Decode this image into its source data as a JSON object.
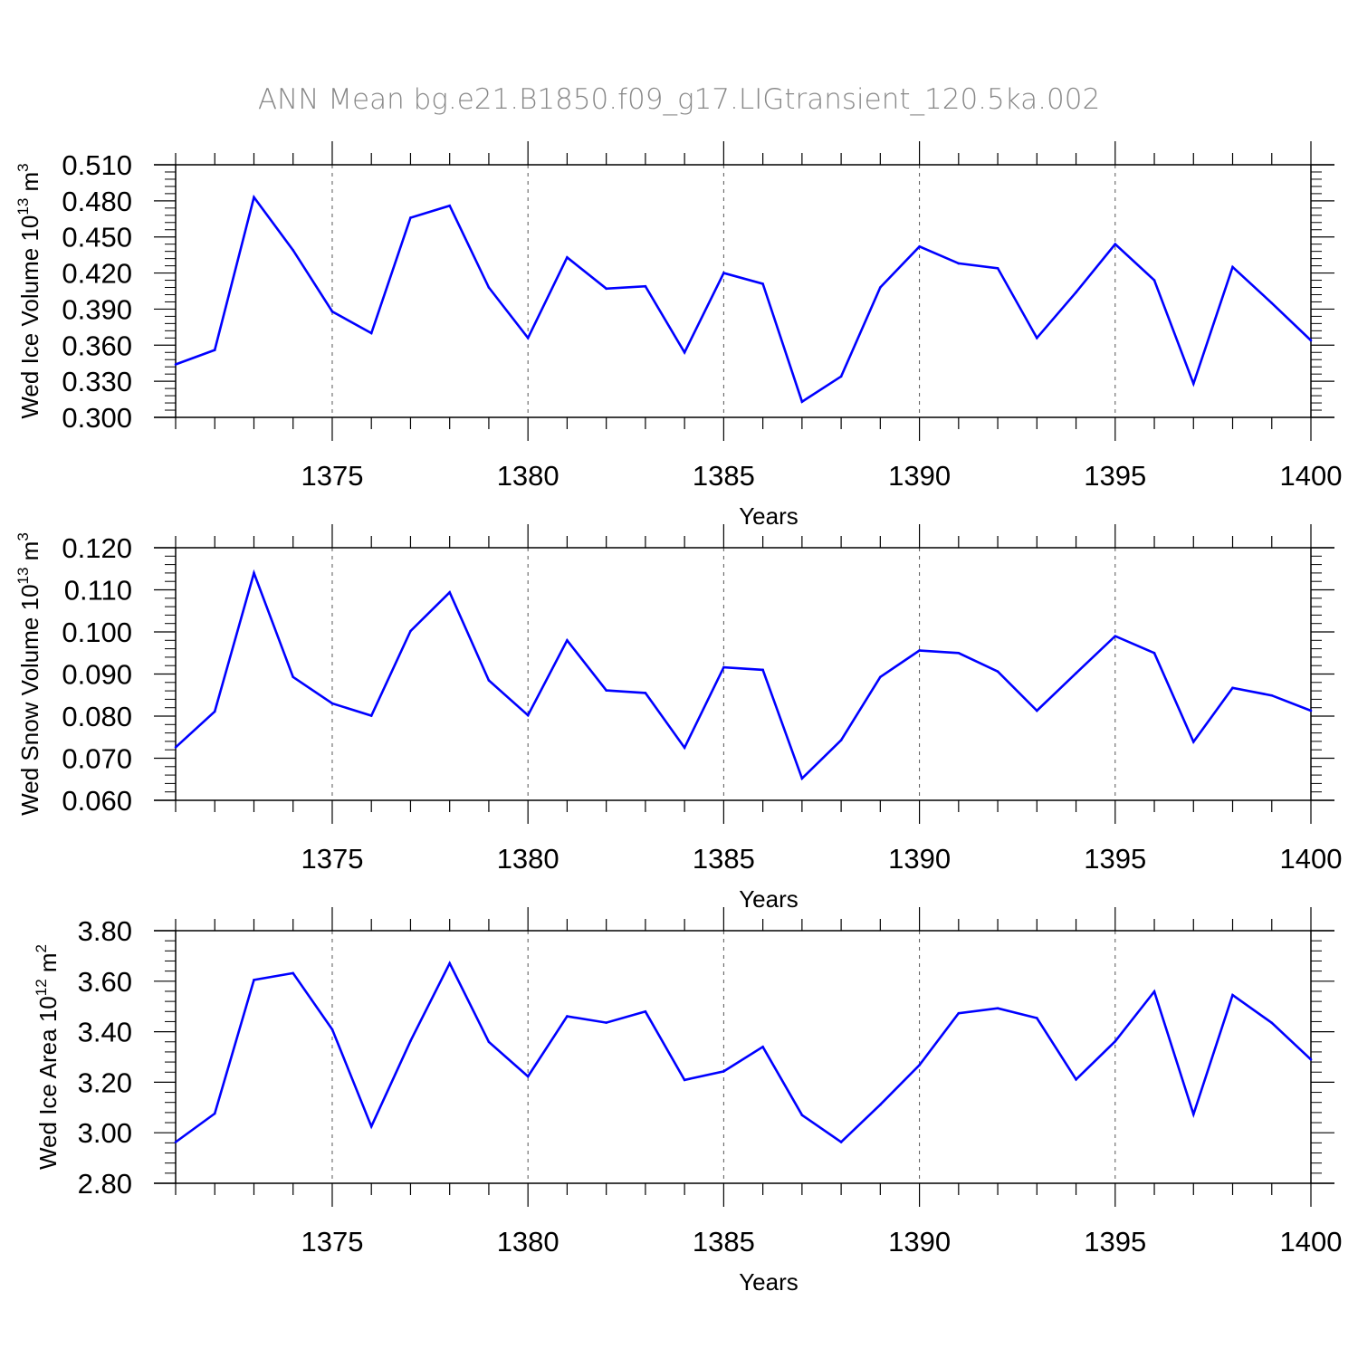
{
  "title": "ANN Mean bg.e21.B1850.f09_g17.LIGtransient_120.5ka.002",
  "colors": {
    "line": "#0000ff",
    "axis": "#000000",
    "grid": "#555555",
    "title": "#888888"
  },
  "chart_data": [
    {
      "type": "line",
      "ylabel": "Wed Ice Volume 10",
      "ylabel_exp": "13",
      "ylabel_unit": " m",
      "ylabel_unit_exp": "3",
      "xlabel": "Years",
      "xlim": [
        1371,
        1400
      ],
      "ylim": [
        0.3,
        0.51
      ],
      "yticks": [
        "0.300",
        "0.330",
        "0.360",
        "0.390",
        "0.420",
        "0.450",
        "0.480",
        "0.510"
      ],
      "xticks": [
        "1375",
        "1380",
        "1385",
        "1390",
        "1395",
        "1400"
      ],
      "grid": "vertical dashed at labeled x ticks",
      "x": [
        1371,
        1372,
        1373,
        1374,
        1375,
        1376,
        1377,
        1378,
        1379,
        1380,
        1381,
        1382,
        1383,
        1384,
        1385,
        1386,
        1387,
        1388,
        1389,
        1390,
        1391,
        1392,
        1393,
        1394,
        1395,
        1396,
        1397,
        1398,
        1399,
        1400
      ],
      "values": [
        0.344,
        0.356,
        0.483,
        0.439,
        0.388,
        0.37,
        0.466,
        0.476,
        0.408,
        0.366,
        0.433,
        0.407,
        0.409,
        0.354,
        0.42,
        0.411,
        0.313,
        0.334,
        0.408,
        0.442,
        0.428,
        0.424,
        0.366,
        0.404,
        0.444,
        0.414,
        0.328,
        0.425,
        0.395,
        0.364
      ]
    },
    {
      "type": "line",
      "ylabel": "Wed Snow Volume 10",
      "ylabel_exp": "13",
      "ylabel_unit": " m",
      "ylabel_unit_exp": "3",
      "xlabel": "Years",
      "xlim": [
        1371,
        1400
      ],
      "ylim": [
        0.06,
        0.12
      ],
      "yticks": [
        "0.060",
        "0.070",
        "0.080",
        "0.090",
        "0.100",
        "0.110",
        "0.120"
      ],
      "xticks": [
        "1375",
        "1380",
        "1385",
        "1390",
        "1395",
        "1400"
      ],
      "grid": "vertical dashed at labeled x ticks",
      "x": [
        1371,
        1372,
        1373,
        1374,
        1375,
        1376,
        1377,
        1378,
        1379,
        1380,
        1381,
        1382,
        1383,
        1384,
        1385,
        1386,
        1387,
        1388,
        1389,
        1390,
        1391,
        1392,
        1393,
        1394,
        1395,
        1396,
        1397,
        1398,
        1399,
        1400
      ],
      "values": [
        0.0726,
        0.0811,
        0.114,
        0.0893,
        0.083,
        0.0801,
        0.1002,
        0.1094,
        0.0885,
        0.0802,
        0.098,
        0.0861,
        0.0855,
        0.0725,
        0.0916,
        0.091,
        0.0652,
        0.0743,
        0.0893,
        0.0956,
        0.095,
        0.0906,
        0.0813,
        0.0902,
        0.099,
        0.095,
        0.0739,
        0.0867,
        0.0849,
        0.0813
      ]
    },
    {
      "type": "line",
      "ylabel": "Wed Ice Area 10",
      "ylabel_exp": "12",
      "ylabel_unit": " m",
      "ylabel_unit_exp": "2",
      "xlabel": "Years",
      "xlim": [
        1371,
        1400
      ],
      "ylim": [
        2.8,
        3.8
      ],
      "yticks": [
        "2.80",
        "3.00",
        "3.20",
        "3.40",
        "3.60",
        "3.80"
      ],
      "xticks": [
        "1375",
        "1380",
        "1385",
        "1390",
        "1395",
        "1400"
      ],
      "grid": "vertical dashed at labeled x ticks",
      "x": [
        1371,
        1372,
        1373,
        1374,
        1375,
        1376,
        1377,
        1378,
        1379,
        1380,
        1381,
        1382,
        1383,
        1384,
        1385,
        1386,
        1387,
        1388,
        1389,
        1390,
        1391,
        1392,
        1393,
        1394,
        1395,
        1396,
        1397,
        1398,
        1399,
        1400
      ],
      "values": [
        2.963,
        3.076,
        3.605,
        3.632,
        3.409,
        3.025,
        3.363,
        3.671,
        3.36,
        3.223,
        3.461,
        3.436,
        3.48,
        3.209,
        3.243,
        3.34,
        3.07,
        2.963,
        3.111,
        3.268,
        3.473,
        3.493,
        3.454,
        3.211,
        3.362,
        3.559,
        3.073,
        3.545,
        3.435,
        3.29
      ]
    }
  ]
}
